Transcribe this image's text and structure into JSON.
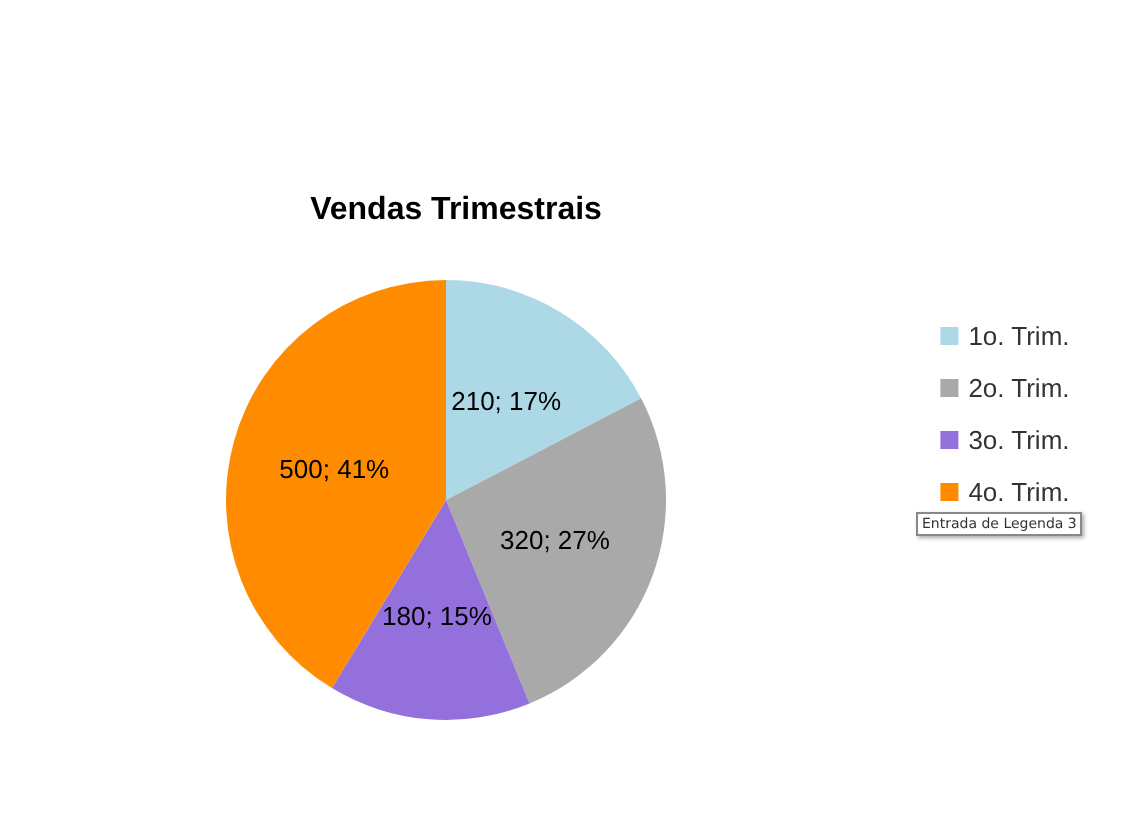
{
  "chart_data": {
    "type": "pie",
    "title": "Vendas Trimestrais",
    "categories": [
      "1o. Trim.",
      "2o. Trim.",
      "3o. Trim.",
      "4o. Trim."
    ],
    "values": [
      210,
      320,
      180,
      500
    ],
    "colors": [
      "#add8e6",
      "#a9a9a9",
      "#9370db",
      "#ff8c00"
    ],
    "value_labels": [
      "210; 17%",
      "320; 27%",
      "180; 15%",
      "500; 41%"
    ],
    "legend": "right",
    "annotations": [
      "Entrada de Legenda 3"
    ]
  }
}
